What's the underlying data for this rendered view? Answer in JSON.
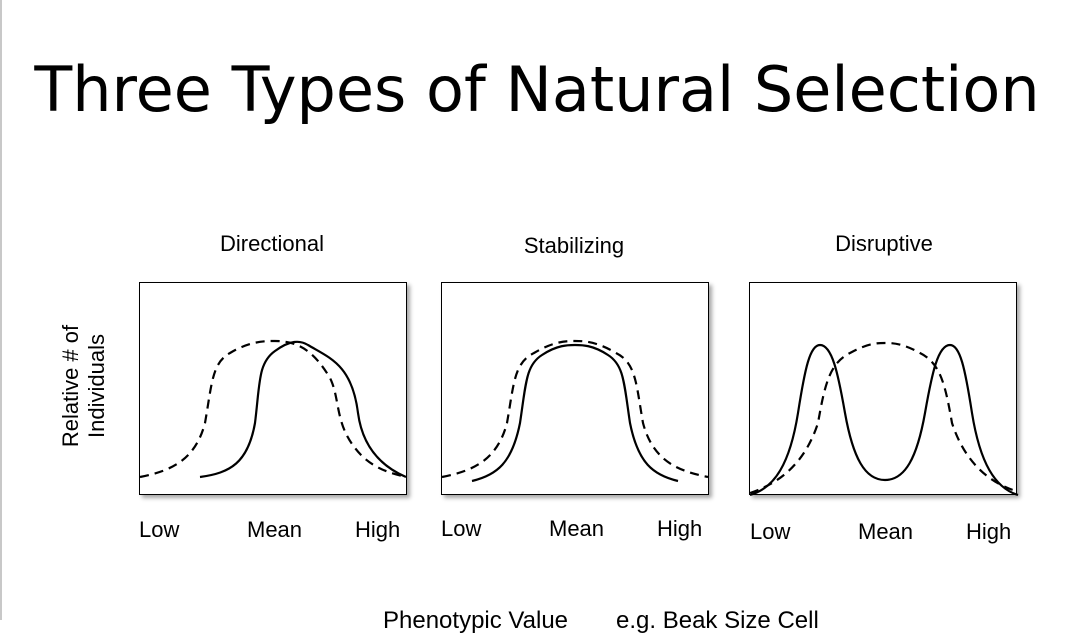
{
  "title": "Three Types of Natural Selection",
  "y_axis_label": [
    "Relative # of",
    "Individuals"
  ],
  "x_axis_label_part1": "Phenotypic Value",
  "x_axis_label_part2": "e.g. Beak Size Cell",
  "panels": [
    {
      "title": "Directional",
      "ticks": {
        "low": "Low",
        "mean": "Mean",
        "high": "High"
      }
    },
    {
      "title": "Stabilizing",
      "ticks": {
        "low": "Low",
        "mean": "Mean",
        "high": "High"
      }
    },
    {
      "title": "Disruptive",
      "ticks": {
        "low": "Low",
        "mean": "Mean",
        "high": "High"
      }
    }
  ],
  "line_color": "#000000"
}
